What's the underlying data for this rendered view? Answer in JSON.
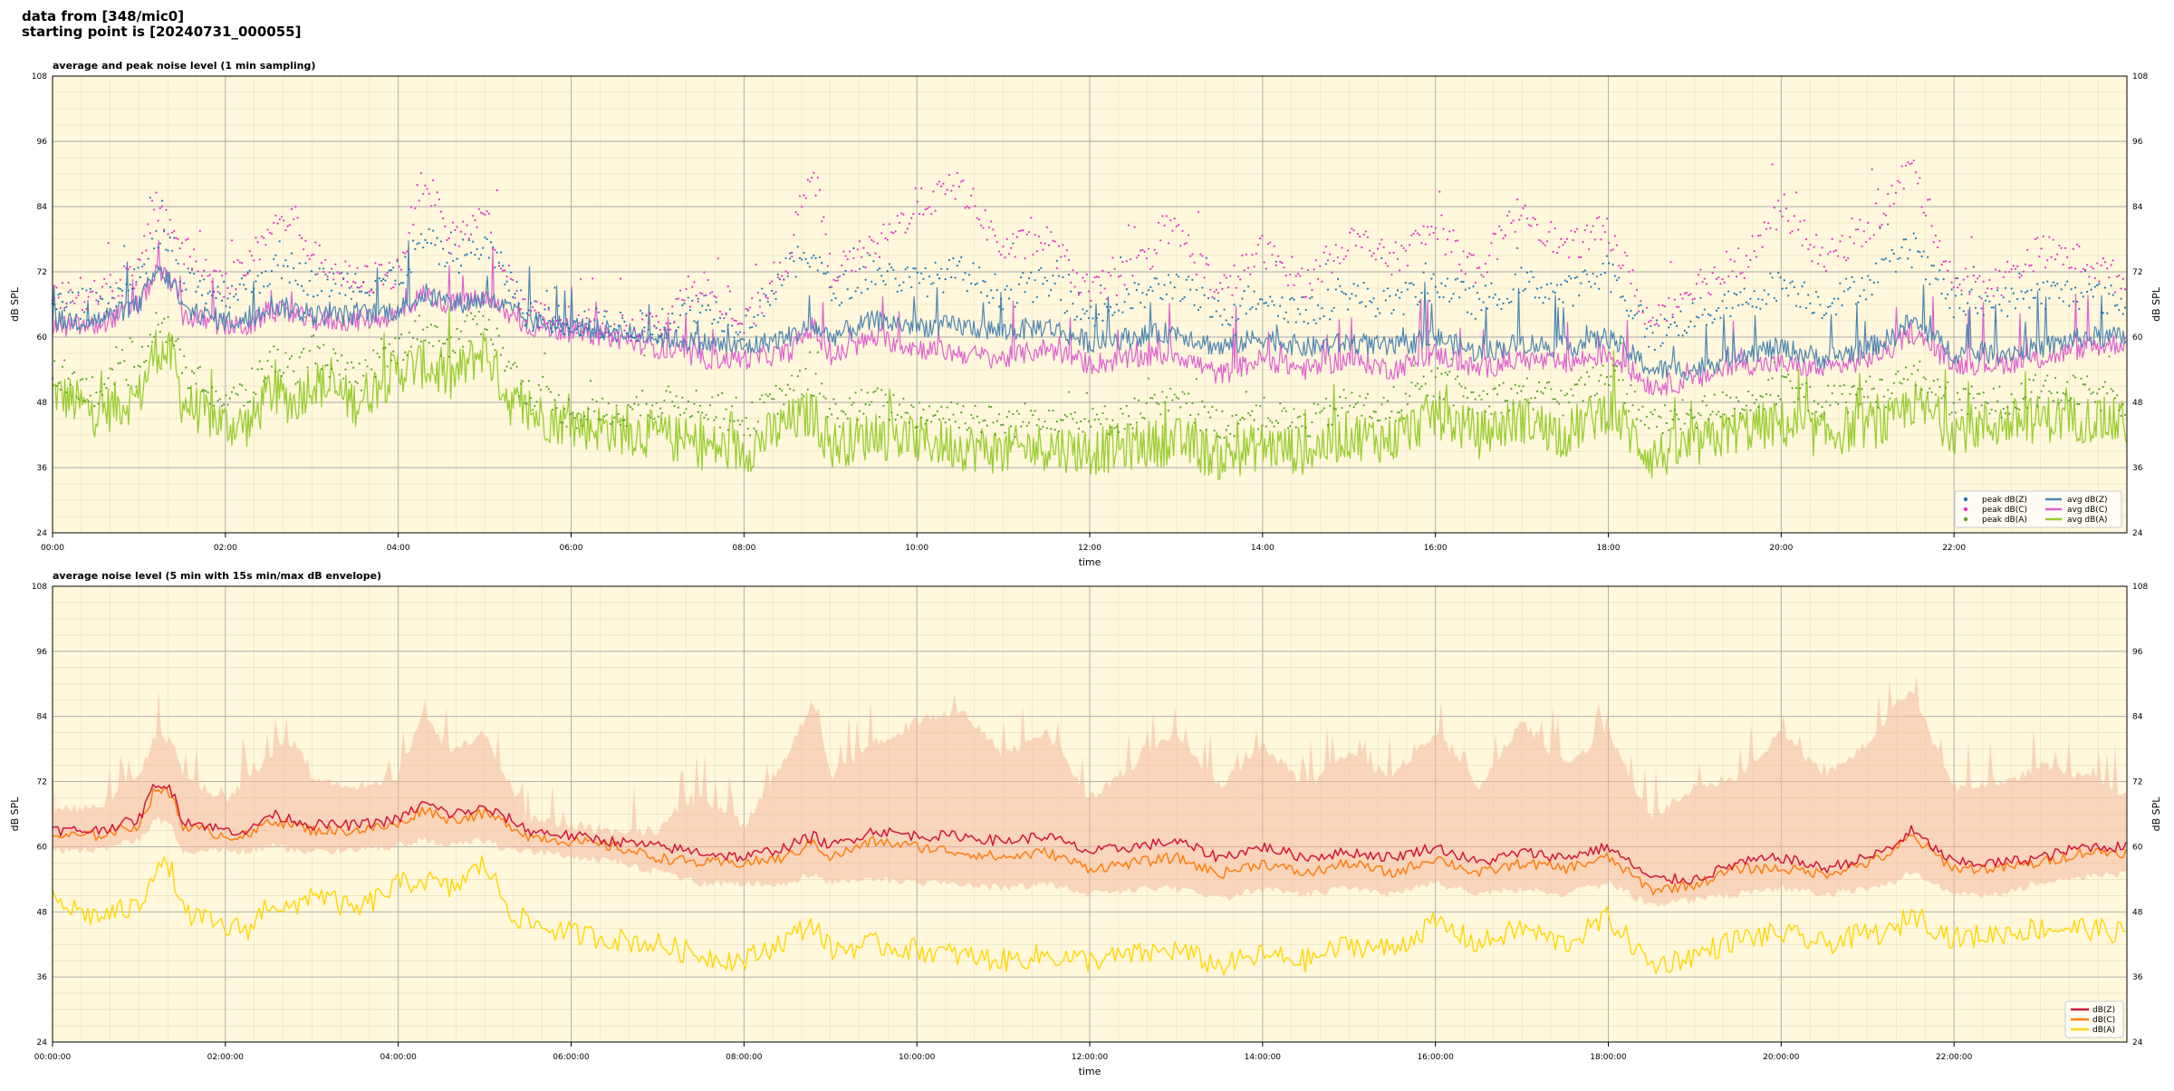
{
  "header": {
    "line1": "data from [348/mic0]",
    "line2": "starting point is [20240731_000055]"
  },
  "colors": {
    "background": "#fff8dc",
    "grid": "#a9a9a9",
    "peak_z": "#1f77b4",
    "peak_c": "#e034c7",
    "peak_a": "#5aa02c",
    "avg_z": "#4f86b5",
    "avg_c": "#e060d0",
    "avg_a": "#9acd32",
    "z5": "#d6153c",
    "c5": "#ff7f0e",
    "a5": "#ffd700",
    "envelope": "#f4b8a0"
  },
  "chart_data": [
    {
      "type": "line",
      "title": "average and peak noise level (1 min sampling)",
      "xlabel": "time",
      "ylabel": "dB SPL",
      "ylim": [
        24,
        108
      ],
      "xlim_hours": [
        0,
        24
      ],
      "yticks": [
        24,
        36,
        48,
        60,
        72,
        84,
        96,
        108
      ],
      "xticks": [
        "00:00",
        "02:00",
        "04:00",
        "06:00",
        "08:00",
        "10:00",
        "12:00",
        "14:00",
        "16:00",
        "18:00",
        "20:00",
        "22:00"
      ],
      "grid": true,
      "legend_position": "bottom-right",
      "legend": [
        "peak dB(Z)",
        "peak dB(C)",
        "peak dB(A)",
        "avg dB(Z)",
        "avg dB(C)",
        "avg dB(A)"
      ],
      "x_hours": [
        0,
        0.5,
        1,
        1.2,
        1.4,
        1.5,
        2,
        2.3,
        2.5,
        2.8,
        3,
        3.5,
        4,
        4.3,
        4.6,
        5,
        5.3,
        5.5,
        6,
        6.5,
        7,
        7.5,
        8,
        8.5,
        8.8,
        9,
        9.5,
        10,
        10.5,
        11,
        11.5,
        12,
        12.5,
        13,
        13.5,
        14,
        14.5,
        15,
        15.5,
        16,
        16.5,
        17,
        17.5,
        18,
        18.5,
        19,
        19.5,
        20,
        20.5,
        21,
        21.3,
        21.5,
        22,
        22.5,
        23,
        23.5,
        24
      ],
      "series": [
        {
          "name": "avg dB(Z)",
          "values": [
            63,
            63,
            66,
            72,
            70,
            65,
            63,
            63,
            66,
            65,
            64,
            64,
            65,
            68,
            66,
            67,
            65,
            63,
            62,
            61,
            60,
            59,
            58,
            60,
            62,
            60,
            63,
            62,
            62,
            61,
            62,
            59,
            60,
            61,
            58,
            60,
            58,
            59,
            58,
            60,
            57,
            59,
            58,
            60,
            54,
            54,
            57,
            58,
            56,
            58,
            60,
            63,
            57,
            57,
            58,
            60,
            60
          ]
        },
        {
          "name": "avg dB(C)",
          "values": [
            62,
            62,
            66,
            72,
            70,
            64,
            62,
            62,
            65,
            64,
            63,
            63,
            64,
            68,
            66,
            67,
            64,
            62,
            61,
            60,
            58,
            56,
            56,
            57,
            62,
            56,
            60,
            58,
            57,
            56,
            58,
            55,
            56,
            57,
            53,
            56,
            54,
            56,
            54,
            57,
            54,
            56,
            55,
            57,
            51,
            52,
            55,
            55,
            54,
            56,
            58,
            61,
            55,
            55,
            56,
            58,
            59
          ]
        },
        {
          "name": "avg dB(A)",
          "values": [
            50,
            46,
            49,
            58,
            56,
            48,
            44,
            44,
            50,
            48,
            52,
            48,
            54,
            55,
            52,
            58,
            48,
            46,
            44,
            43,
            42,
            40,
            39,
            44,
            46,
            40,
            42,
            41,
            40,
            39,
            40,
            39,
            40,
            41,
            38,
            40,
            39,
            42,
            41,
            46,
            42,
            45,
            42,
            47,
            38,
            40,
            43,
            44,
            42,
            44,
            44,
            48,
            43,
            44,
            45,
            45,
            44
          ]
        },
        {
          "name": "peak dB(Z)",
          "values": [
            66,
            66,
            70,
            78,
            76,
            70,
            68,
            70,
            72,
            73,
            70,
            70,
            71,
            78,
            74,
            77,
            70,
            64,
            63,
            62,
            62,
            66,
            62,
            72,
            76,
            68,
            72,
            70,
            72,
            68,
            70,
            64,
            67,
            70,
            64,
            68,
            64,
            68,
            66,
            70,
            66,
            70,
            68,
            72,
            60,
            64,
            66,
            70,
            66,
            70,
            74,
            76,
            66,
            66,
            68,
            68,
            66
          ]
        },
        {
          "name": "peak dB(C)",
          "values": [
            68,
            68,
            72,
            84,
            80,
            76,
            70,
            74,
            80,
            82,
            75,
            70,
            72,
            90,
            78,
            82,
            70,
            64,
            63,
            62,
            62,
            70,
            62,
            74,
            92,
            72,
            76,
            84,
            88,
            76,
            78,
            68,
            72,
            80,
            68,
            76,
            70,
            78,
            74,
            80,
            72,
            84,
            76,
            80,
            62,
            70,
            72,
            84,
            74,
            80,
            86,
            92,
            70,
            70,
            76,
            74,
            70
          ]
        },
        {
          "name": "peak dB(A)",
          "values": [
            54,
            50,
            54,
            64,
            60,
            54,
            48,
            50,
            56,
            54,
            58,
            52,
            58,
            62,
            58,
            64,
            54,
            50,
            46,
            46,
            48,
            48,
            44,
            50,
            52,
            46,
            48,
            46,
            46,
            44,
            46,
            44,
            46,
            48,
            44,
            46,
            44,
            48,
            46,
            52,
            48,
            50,
            48,
            54,
            44,
            46,
            48,
            50,
            48,
            50,
            50,
            54,
            48,
            48,
            50,
            50,
            48
          ]
        }
      ]
    },
    {
      "type": "line",
      "title": "average noise level (5 min with 15s min/max dB envelope)",
      "xlabel": "time",
      "ylabel": "dB SPL",
      "ylim": [
        24,
        108
      ],
      "xlim_hours": [
        0,
        24
      ],
      "yticks": [
        24,
        36,
        48,
        60,
        72,
        84,
        96,
        108
      ],
      "xticks": [
        "00:00:00",
        "02:00:00",
        "04:00:00",
        "06:00:00",
        "08:00:00",
        "10:00:00",
        "12:00:00",
        "14:00:00",
        "16:00:00",
        "18:00:00",
        "20:00:00",
        "22:00:00"
      ],
      "grid": true,
      "legend_position": "bottom-right",
      "legend": [
        "dB(Z)",
        "dB(C)",
        "dB(A)"
      ],
      "x_hours": [
        0,
        0.5,
        1,
        1.2,
        1.4,
        1.5,
        2,
        2.3,
        2.5,
        2.8,
        3,
        3.5,
        4,
        4.3,
        4.6,
        5,
        5.3,
        5.5,
        6,
        6.5,
        7,
        7.5,
        8,
        8.5,
        8.8,
        9,
        9.5,
        10,
        10.5,
        11,
        11.5,
        12,
        12.5,
        13,
        13.5,
        14,
        14.5,
        15,
        15.5,
        16,
        16.5,
        17,
        17.5,
        18,
        18.5,
        19,
        19.5,
        20,
        20.5,
        21,
        21.3,
        21.5,
        22,
        22.5,
        23,
        23.5,
        24
      ],
      "series": [
        {
          "name": "dB(Z)",
          "values": [
            63,
            63,
            65,
            72,
            70,
            65,
            63,
            63,
            66,
            65,
            64,
            64,
            65,
            68,
            66,
            67,
            65,
            63,
            62,
            61,
            60,
            59,
            58,
            60,
            62,
            60,
            63,
            62,
            62,
            61,
            62,
            59,
            60,
            61,
            58,
            60,
            58,
            59,
            58,
            60,
            57,
            59,
            58,
            60,
            54,
            54,
            57,
            58,
            56,
            58,
            60,
            63,
            57,
            57,
            58,
            60,
            60
          ]
        },
        {
          "name": "dB(C)",
          "values": [
            62,
            62,
            64,
            71,
            69,
            64,
            62,
            62,
            65,
            64,
            63,
            63,
            64,
            67,
            65,
            66,
            64,
            62,
            61,
            60,
            58,
            57,
            57,
            58,
            61,
            58,
            61,
            60,
            59,
            58,
            59,
            56,
            57,
            58,
            55,
            57,
            55,
            57,
            55,
            58,
            55,
            57,
            56,
            58,
            52,
            53,
            56,
            56,
            55,
            57,
            59,
            62,
            56,
            56,
            57,
            59,
            59
          ]
        },
        {
          "name": "dB(A)",
          "values": [
            50,
            47,
            49,
            57,
            55,
            48,
            45,
            45,
            50,
            48,
            52,
            48,
            53,
            54,
            52,
            57,
            48,
            46,
            44,
            43,
            42,
            40,
            39,
            43,
            46,
            41,
            42,
            41,
            40,
            39,
            40,
            39,
            40,
            41,
            38,
            40,
            39,
            42,
            41,
            46,
            42,
            45,
            42,
            47,
            38,
            40,
            43,
            44,
            42,
            44,
            44,
            48,
            43,
            44,
            45,
            45,
            44
          ]
        },
        {
          "name": "envelope max",
          "values": [
            66,
            66,
            72,
            80,
            78,
            72,
            68,
            72,
            76,
            78,
            72,
            70,
            72,
            84,
            76,
            80,
            70,
            64,
            63,
            62,
            62,
            68,
            63,
            76,
            86,
            72,
            78,
            82,
            84,
            76,
            80,
            68,
            74,
            80,
            70,
            78,
            70,
            76,
            72,
            80,
            70,
            82,
            74,
            80,
            64,
            70,
            72,
            80,
            72,
            78,
            84,
            88,
            70,
            70,
            74,
            72,
            68
          ]
        },
        {
          "name": "envelope min",
          "values": [
            60,
            60,
            62,
            66,
            64,
            60,
            60,
            60,
            61,
            60,
            60,
            60,
            61,
            62,
            61,
            62,
            60,
            60,
            59,
            58,
            56,
            54,
            54,
            54,
            56,
            54,
            55,
            54,
            54,
            53,
            54,
            52,
            53,
            53,
            51,
            53,
            52,
            53,
            52,
            54,
            52,
            53,
            52,
            54,
            50,
            51,
            52,
            53,
            52,
            53,
            54,
            56,
            52,
            52,
            54,
            55,
            56
          ]
        }
      ]
    }
  ]
}
